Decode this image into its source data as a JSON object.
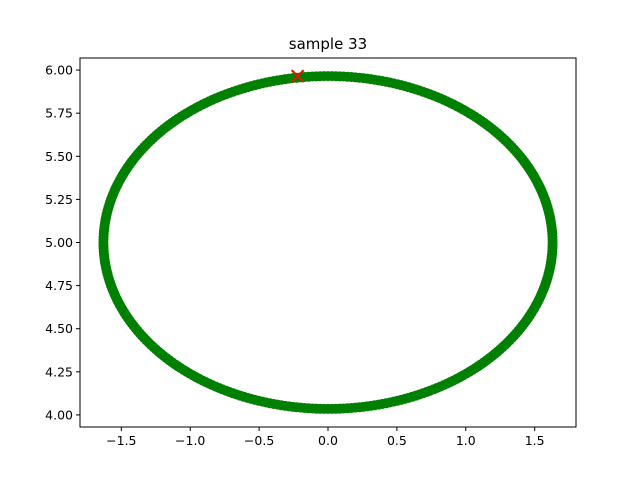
{
  "chart_data": {
    "type": "scatter",
    "title": "sample 33",
    "xlabel": "",
    "ylabel": "",
    "xlim": [
      -1.8,
      1.8
    ],
    "ylim": [
      3.93,
      6.07
    ],
    "xticks": [
      -1.5,
      -1.0,
      -0.5,
      0.0,
      0.5,
      1.0,
      1.5
    ],
    "xtick_labels": [
      "−1.5",
      "−1.0",
      "−0.5",
      "0.0",
      "0.5",
      "1.0",
      "1.5"
    ],
    "yticks": [
      4.0,
      4.25,
      4.5,
      4.75,
      5.0,
      5.25,
      5.5,
      5.75,
      6.0
    ],
    "ytick_labels": [
      "4.00",
      "4.25",
      "4.50",
      "4.75",
      "5.00",
      "5.25",
      "5.50",
      "5.75",
      "6.00"
    ],
    "grid": false,
    "series": [
      {
        "kind": "ellipse-points",
        "center": [
          0.0,
          5.0
        ],
        "radius_x": 1.63,
        "radius_y": 0.965,
        "point_count": 360,
        "color": "#008000"
      }
    ],
    "annotations": [
      {
        "kind": "x-marker",
        "x": -0.22,
        "y": 5.965,
        "color": "#cc2200"
      }
    ]
  }
}
